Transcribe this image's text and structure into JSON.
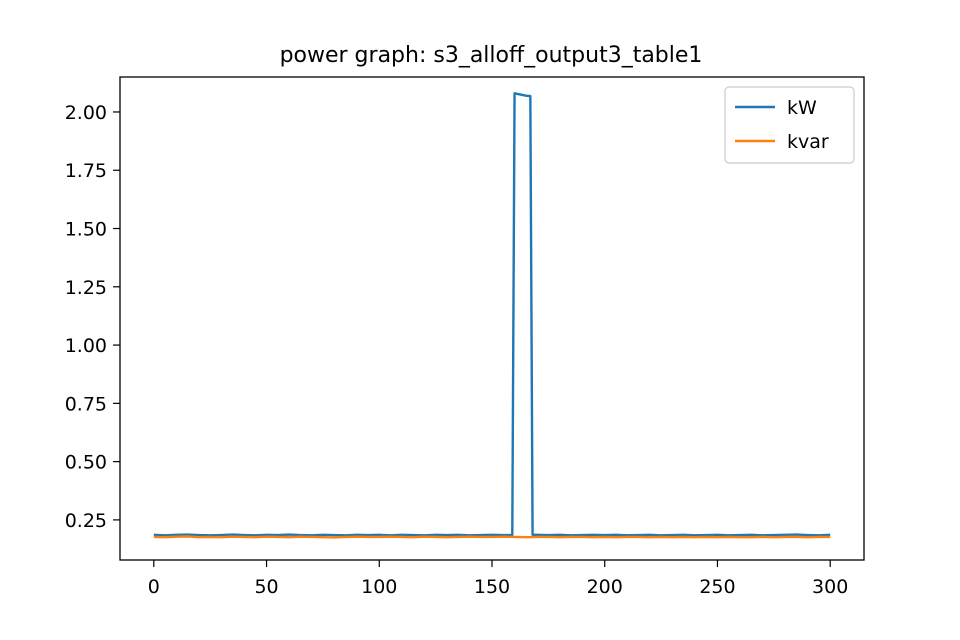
{
  "chart_data": {
    "type": "line",
    "title": "power graph: s3_alloff_output3_table1",
    "xlabel": "",
    "ylabel": "",
    "xlim": [
      -15,
      315
    ],
    "ylim": [
      0.078,
      2.15
    ],
    "xticks": [
      0,
      50,
      100,
      150,
      200,
      250,
      300
    ],
    "yticks": [
      0.25,
      0.5,
      0.75,
      1.0,
      1.25,
      1.5,
      1.75,
      2.0
    ],
    "xtick_labels": [
      "0",
      "50",
      "100",
      "150",
      "200",
      "250",
      "300"
    ],
    "ytick_labels": [
      "0.25",
      "0.50",
      "0.75",
      "1.00",
      "1.25",
      "1.50",
      "1.75",
      "2.00"
    ],
    "grid": false,
    "legend_position": "upper right",
    "series": [
      {
        "name": "kW",
        "color": "#1f77b4",
        "x": [
          0,
          5,
          10,
          15,
          20,
          25,
          30,
          35,
          40,
          45,
          50,
          55,
          60,
          65,
          70,
          75,
          80,
          85,
          90,
          95,
          100,
          105,
          110,
          115,
          120,
          125,
          130,
          135,
          140,
          145,
          150,
          155,
          159,
          160,
          161,
          163,
          165,
          167,
          168,
          170,
          175,
          180,
          185,
          190,
          195,
          200,
          205,
          210,
          215,
          220,
          225,
          230,
          235,
          240,
          245,
          250,
          255,
          260,
          265,
          270,
          275,
          280,
          285,
          290,
          295,
          300
        ],
        "values": [
          0.186,
          0.184,
          0.186,
          0.187,
          0.185,
          0.184,
          0.185,
          0.187,
          0.185,
          0.184,
          0.186,
          0.185,
          0.187,
          0.185,
          0.184,
          0.186,
          0.185,
          0.184,
          0.186,
          0.185,
          0.186,
          0.184,
          0.186,
          0.185,
          0.184,
          0.186,
          0.185,
          0.186,
          0.184,
          0.185,
          0.186,
          0.185,
          0.185,
          2.08,
          2.078,
          2.074,
          2.07,
          2.068,
          0.186,
          0.186,
          0.185,
          0.186,
          0.184,
          0.185,
          0.186,
          0.185,
          0.186,
          0.184,
          0.185,
          0.186,
          0.184,
          0.185,
          0.186,
          0.184,
          0.185,
          0.186,
          0.184,
          0.185,
          0.186,
          0.184,
          0.185,
          0.186,
          0.187,
          0.185,
          0.184,
          0.186
        ]
      },
      {
        "name": "kvar",
        "color": "#ff7f0e",
        "x": [
          0,
          5,
          10,
          15,
          20,
          25,
          30,
          35,
          40,
          45,
          50,
          55,
          60,
          65,
          70,
          75,
          80,
          85,
          90,
          95,
          100,
          105,
          110,
          115,
          120,
          125,
          130,
          135,
          140,
          145,
          150,
          155,
          160,
          165,
          170,
          175,
          180,
          185,
          190,
          195,
          200,
          205,
          210,
          215,
          220,
          225,
          230,
          235,
          240,
          245,
          250,
          255,
          260,
          265,
          270,
          275,
          280,
          285,
          290,
          295,
          300
        ],
        "values": [
          0.177,
          0.176,
          0.178,
          0.179,
          0.176,
          0.177,
          0.176,
          0.178,
          0.177,
          0.176,
          0.178,
          0.177,
          0.176,
          0.178,
          0.177,
          0.176,
          0.175,
          0.177,
          0.178,
          0.177,
          0.177,
          0.178,
          0.177,
          0.176,
          0.178,
          0.177,
          0.176,
          0.177,
          0.178,
          0.177,
          0.177,
          0.178,
          0.177,
          0.176,
          0.177,
          0.177,
          0.176,
          0.177,
          0.177,
          0.176,
          0.177,
          0.176,
          0.177,
          0.177,
          0.176,
          0.177,
          0.176,
          0.177,
          0.176,
          0.177,
          0.176,
          0.177,
          0.176,
          0.176,
          0.177,
          0.176,
          0.177,
          0.177,
          0.176,
          0.177,
          0.177
        ]
      }
    ]
  }
}
